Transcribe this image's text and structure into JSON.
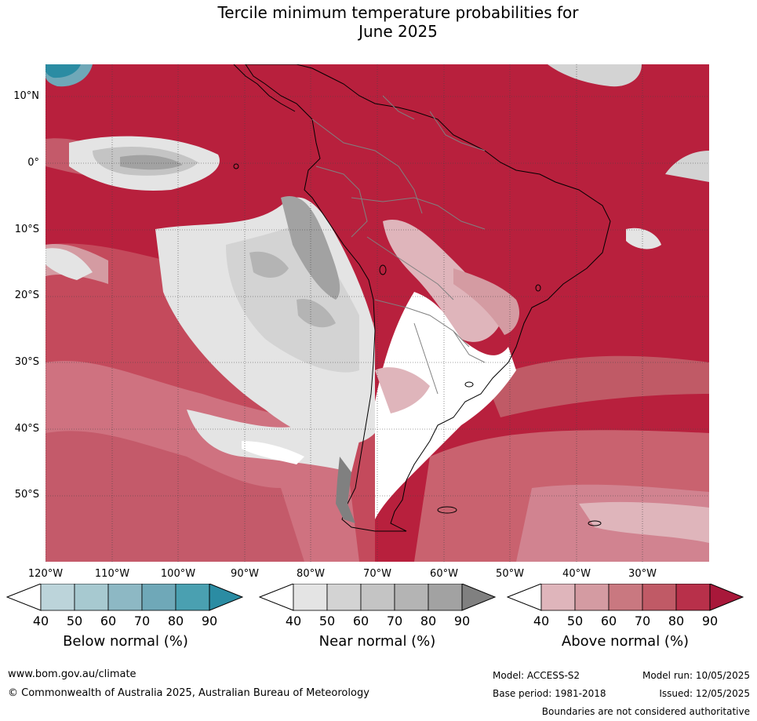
{
  "title_line1": "Tercile minimum temperature probabilities for",
  "title_line2": "June 2025",
  "lat_labels": [
    "10°N",
    "0°",
    "10°S",
    "20°S",
    "30°S",
    "40°S",
    "50°S"
  ],
  "lon_labels": [
    "120°W",
    "110°W",
    "100°W",
    "90°W",
    "80°W",
    "70°W",
    "60°W",
    "50°W",
    "40°W",
    "30°W"
  ],
  "colorbars": {
    "below": {
      "title": "Below normal (%)",
      "ticks": [
        "40",
        "50",
        "60",
        "70",
        "80",
        "90"
      ],
      "colors": [
        "#bcd4da",
        "#a7c9d0",
        "#8db8c4",
        "#6fa8b8",
        "#4aa0b1",
        "#2b8ca3"
      ]
    },
    "near": {
      "title": "Near normal (%)",
      "ticks": [
        "40",
        "50",
        "60",
        "70",
        "80",
        "90"
      ],
      "colors": [
        "#e4e4e4",
        "#d3d3d3",
        "#c4c4c4",
        "#b4b4b4",
        "#a2a2a2",
        "#808080"
      ]
    },
    "above": {
      "title": "Above normal (%)",
      "ticks": [
        "40",
        "50",
        "60",
        "70",
        "80",
        "90"
      ],
      "colors": [
        "#dfb5bb",
        "#d49ba2",
        "#c97880",
        "#c05a66",
        "#b8304a",
        "#a8183a"
      ]
    }
  },
  "footer": {
    "website": "www.bom.gov.au/climate",
    "copyright": "© Commonwealth of Australia 2025, Australian Bureau of Meteorology",
    "model": "Model: ACCESS-S2",
    "base_period": "Base period: 1981-2018",
    "model_run": "Model run: 10/05/2025",
    "issued": "Issued: 12/05/2025",
    "disclaimer": "Boundaries are not considered authoritative"
  }
}
